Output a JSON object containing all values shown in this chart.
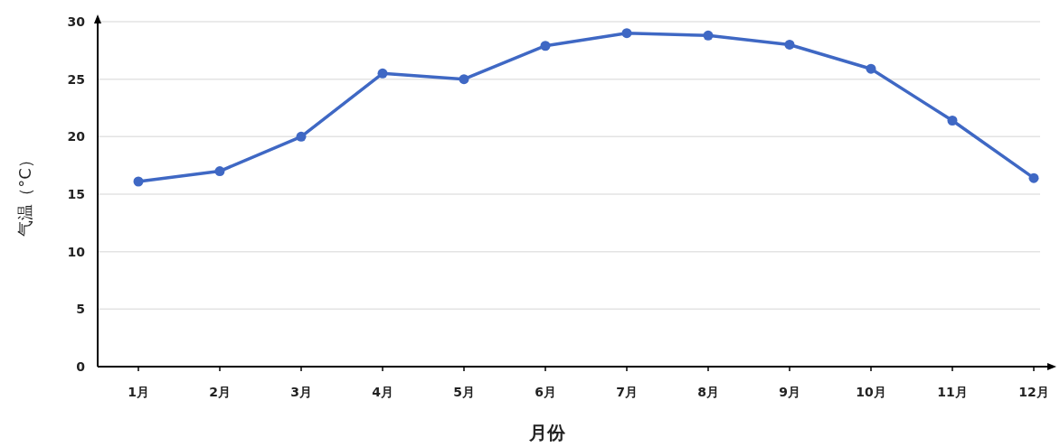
{
  "chart_data": {
    "type": "line",
    "xlabel": "月份",
    "ylabel": "气温（°C）",
    "categories": [
      "1月",
      "2月",
      "3月",
      "4月",
      "5月",
      "6月",
      "7月",
      "8月",
      "9月",
      "10月",
      "11月",
      "12月"
    ],
    "series": [
      {
        "color": "#3f68c4",
        "values": [
          16.1,
          17.0,
          20.0,
          25.5,
          25.0,
          27.9,
          29.0,
          28.8,
          28.0,
          25.9,
          21.4,
          16.4
        ]
      }
    ],
    "ylim": [
      0,
      30
    ],
    "yticks": [
      0,
      5,
      10,
      15,
      20,
      25,
      30
    ],
    "grid": "y",
    "marker": "circle",
    "line_style": "solid"
  }
}
